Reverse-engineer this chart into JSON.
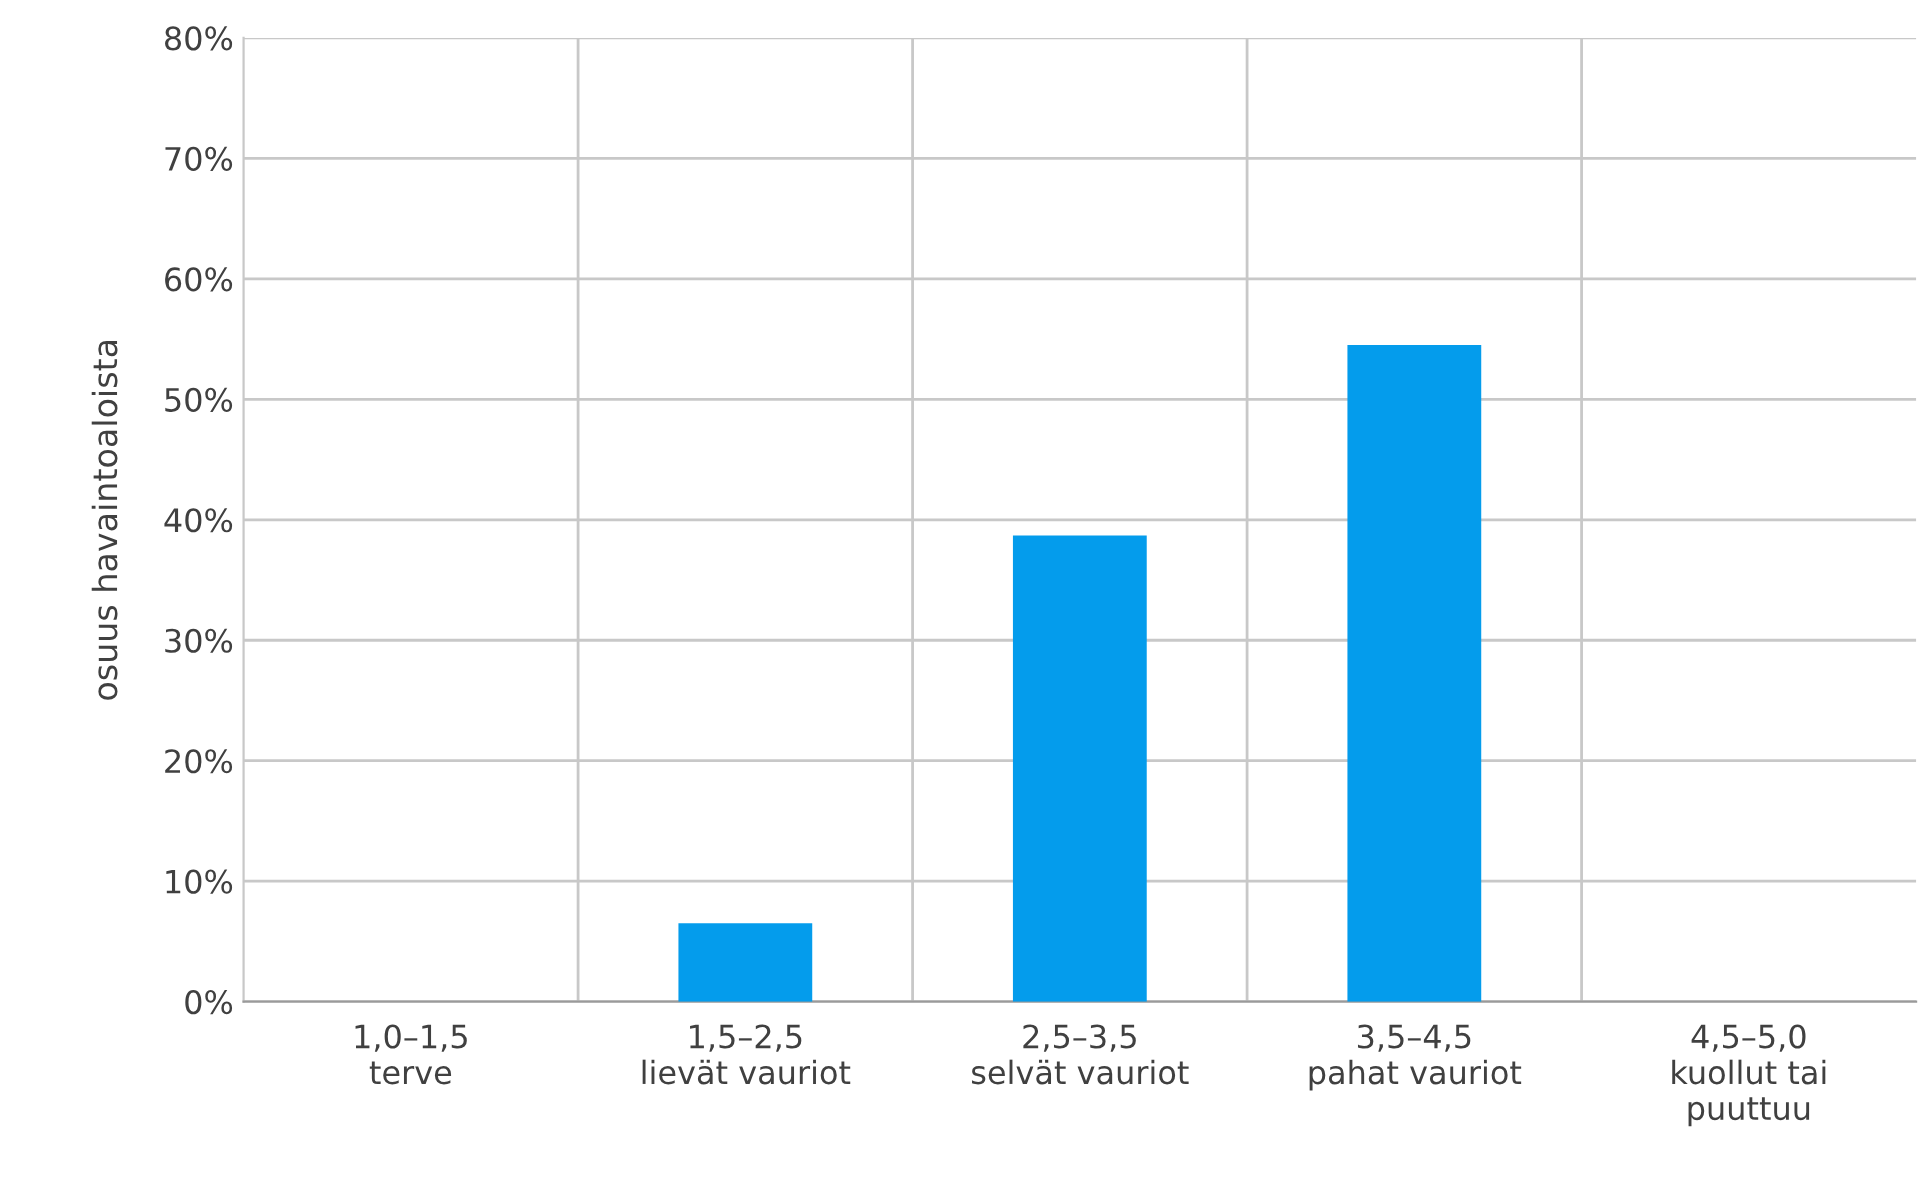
{
  "chart_data": {
    "type": "bar",
    "ylabel": "osuus havaintoaloista",
    "categories": [
      "1,0–1,5\nterve",
      "1,5–2,5\nlievät vauriot",
      "2,5–3,5\nselvät vauriot",
      "3,5–4,5\npahat vauriot",
      "4,5–5,0\nkuollut tai\npuuttuu"
    ],
    "values": [
      0,
      6.5,
      38.7,
      54.5,
      0
    ],
    "color": "#049cec",
    "ylim": [
      0,
      80
    ],
    "yticks": [
      {
        "value": 0,
        "label": "0%"
      },
      {
        "value": 10,
        "label": "10%"
      },
      {
        "value": 20,
        "label": "20%"
      },
      {
        "value": 30,
        "label": "30%"
      },
      {
        "value": 40,
        "label": "40%"
      },
      {
        "value": 50,
        "label": "50%"
      },
      {
        "value": 60,
        "label": "60%"
      },
      {
        "value": 70,
        "label": "70%"
      },
      {
        "value": 80,
        "label": "80%"
      }
    ],
    "grid": true,
    "legend": false
  }
}
